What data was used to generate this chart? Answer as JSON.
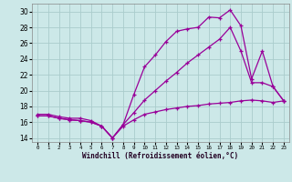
{
  "xlabel": "Windchill (Refroidissement éolien,°C)",
  "bg_color": "#cce8e8",
  "grid_color": "#aacccc",
  "line_color": "#990099",
  "xlim": [
    -0.5,
    23.5
  ],
  "ylim": [
    13.5,
    31.0
  ],
  "xticks": [
    0,
    1,
    2,
    3,
    4,
    5,
    6,
    7,
    8,
    9,
    10,
    11,
    12,
    13,
    14,
    15,
    16,
    17,
    18,
    19,
    20,
    21,
    22,
    23
  ],
  "yticks": [
    14,
    16,
    18,
    20,
    22,
    24,
    26,
    28,
    30
  ],
  "line1_x": [
    0,
    1,
    2,
    3,
    4,
    5,
    6,
    7,
    8,
    9,
    10,
    11,
    12,
    13,
    14,
    15,
    16,
    17,
    18,
    19,
    20,
    21,
    22,
    23
  ],
  "line1_y": [
    17.0,
    17.0,
    16.7,
    16.5,
    16.5,
    16.2,
    15.5,
    14.0,
    15.7,
    19.5,
    23.0,
    24.5,
    26.2,
    27.5,
    27.8,
    28.0,
    29.3,
    29.2,
    30.2,
    28.2,
    21.5,
    25.0,
    20.5,
    18.7
  ],
  "line2_x": [
    0,
    1,
    2,
    3,
    4,
    5,
    6,
    7,
    8,
    9,
    10,
    11,
    12,
    13,
    14,
    15,
    16,
    17,
    18,
    19,
    20,
    21,
    22,
    23
  ],
  "line2_y": [
    16.8,
    16.8,
    16.5,
    16.3,
    16.2,
    16.0,
    15.5,
    14.0,
    15.7,
    17.2,
    18.8,
    20.0,
    21.2,
    22.3,
    23.5,
    24.5,
    25.5,
    26.5,
    28.0,
    25.0,
    21.0,
    21.0,
    20.5,
    18.7
  ],
  "line3_x": [
    0,
    1,
    2,
    3,
    4,
    5,
    6,
    7,
    8,
    9,
    10,
    11,
    12,
    13,
    14,
    15,
    16,
    17,
    18,
    19,
    20,
    21,
    22,
    23
  ],
  "line3_y": [
    16.8,
    16.8,
    16.5,
    16.3,
    16.2,
    16.0,
    15.5,
    14.0,
    15.5,
    16.3,
    17.0,
    17.3,
    17.6,
    17.8,
    18.0,
    18.1,
    18.3,
    18.4,
    18.5,
    18.7,
    18.8,
    18.7,
    18.5,
    18.7
  ]
}
